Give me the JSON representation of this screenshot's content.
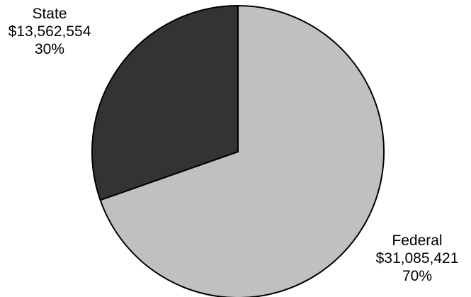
{
  "chart_data": {
    "type": "pie",
    "start_angle_deg": 0,
    "direction": "clockwise",
    "legend": "none",
    "slices": [
      {
        "name": "Federal",
        "value": 31085421,
        "value_label": "$31,085,421",
        "percent_label": "70%",
        "color": "#c0c0c0"
      },
      {
        "name": "State",
        "value": 13562554,
        "value_label": "$13,562,554",
        "percent_label": "30%",
        "color": "#333333"
      }
    ]
  }
}
